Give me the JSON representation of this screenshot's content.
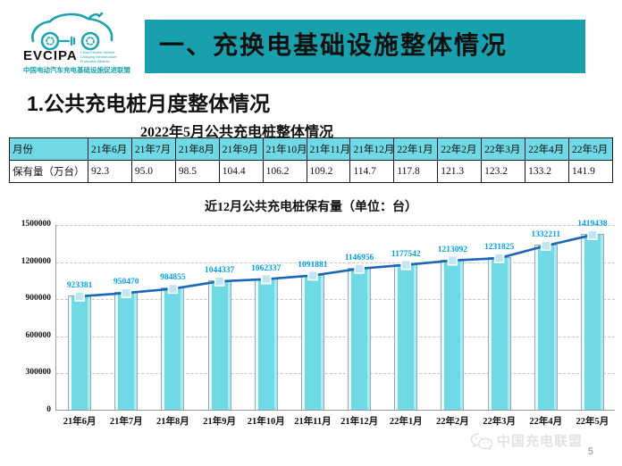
{
  "logo": {
    "name": "EVCIPA",
    "subtitle_en": "China Electric Vehicle Charging Infrastructure Promotion Alliance",
    "subtitle_cn": "中国电动汽车充电基础设施促进联盟"
  },
  "header": {
    "banner_title": "一、充换电基础设施整体情况"
  },
  "section_title": "1.公共充电桩月度整体情况",
  "table": {
    "title": "2022年5月公共充电桩整体情况",
    "row_header": "月份",
    "value_label": "保有量（万台）",
    "columns": [
      "21年6月",
      "21年7月",
      "21年8月",
      "21年9月",
      "21年10月",
      "21年11月",
      "21年12月",
      "22年1月",
      "22年2月",
      "22年3月",
      "22年4月",
      "22年5月"
    ],
    "values": [
      "92.3",
      "95.0",
      "98.5",
      "104.4",
      "106.2",
      "109.2",
      "114.7",
      "117.8",
      "121.3",
      "123.2",
      "133.2",
      "141.9"
    ]
  },
  "chart_data": {
    "type": "bar",
    "title": "近12月公共充电桩保有量（单位：台）",
    "categories": [
      "21年6月",
      "21年7月",
      "21年8月",
      "21年9月",
      "21年10月",
      "21年11月",
      "21年12月",
      "22年1月",
      "22年2月",
      "22年3月",
      "22年4月",
      "22年5月"
    ],
    "values": [
      923381,
      950470,
      984855,
      1044337,
      1062337,
      1091881,
      1146956,
      1177542,
      1213092,
      1231825,
      1332211,
      1419438
    ],
    "overlay_line": true,
    "ylim": [
      0,
      1500000
    ],
    "yticks": [
      0,
      300000,
      600000,
      900000,
      1200000,
      1500000
    ],
    "grid": "horizontal-dashed",
    "legend": "none",
    "colors": {
      "bar": "#6fd9e6",
      "line": "#1b66b5",
      "data_label": "#00a0e9",
      "marker": "#bfe6f2"
    }
  },
  "footer": {
    "wechat_label": "中国充电联盟",
    "page_number": "5"
  }
}
